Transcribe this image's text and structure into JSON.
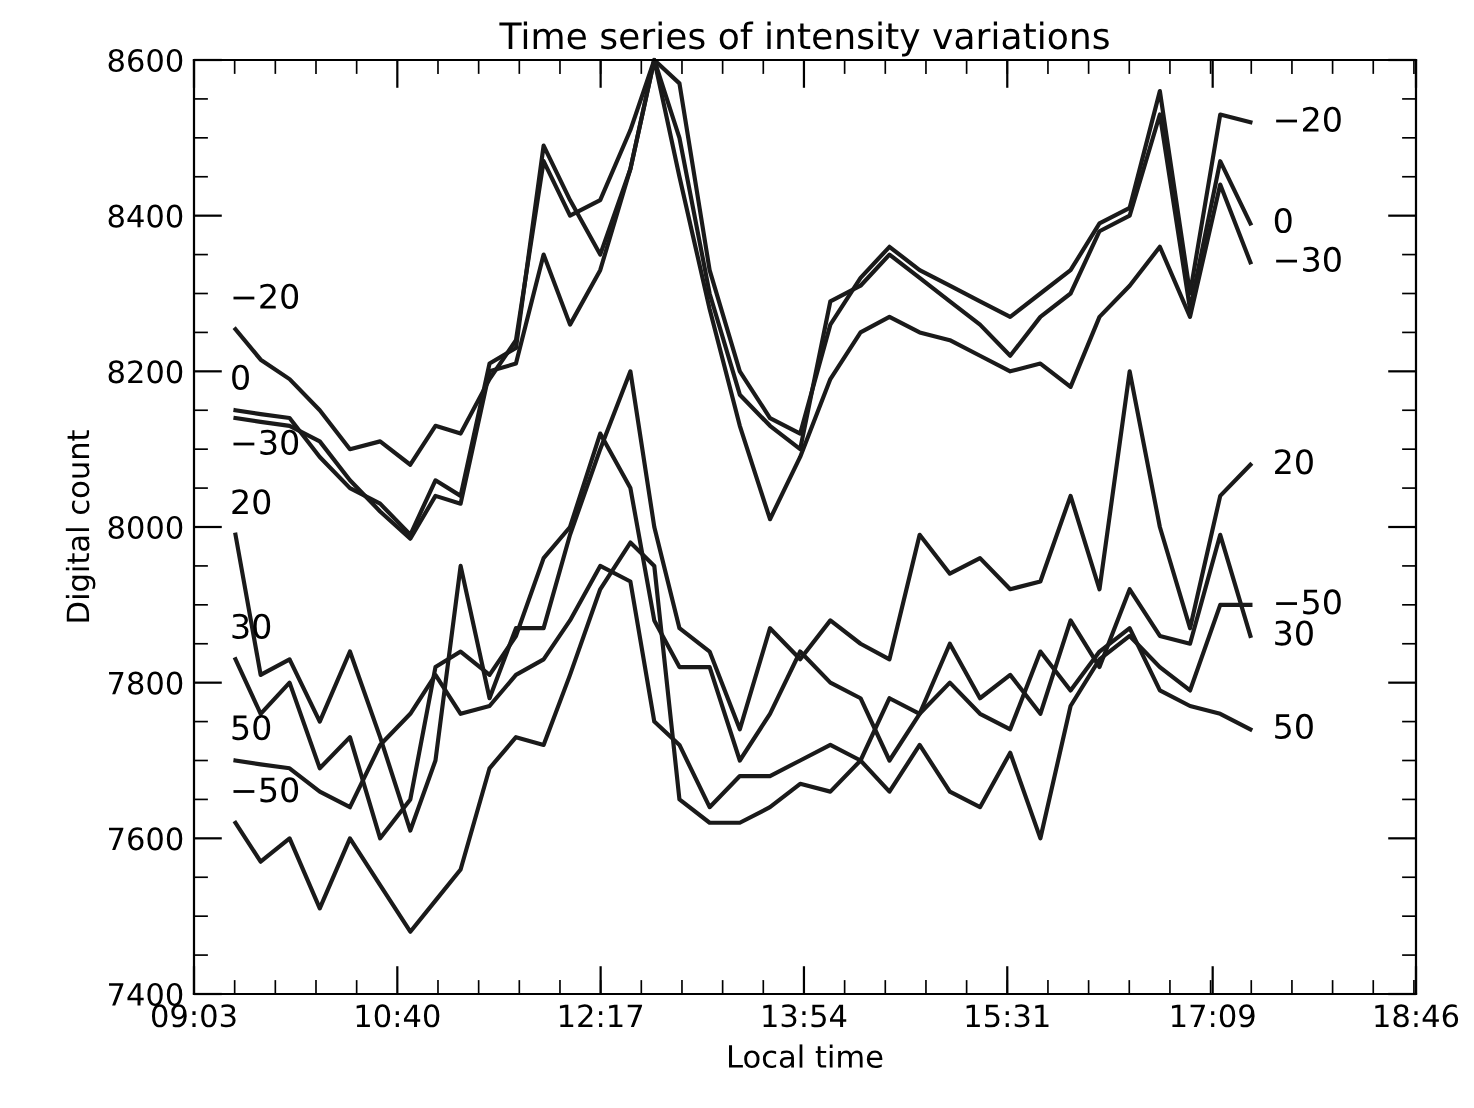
{
  "chart_data": {
    "type": "line",
    "title": "Time series of intensity variations",
    "xlabel": "Local time",
    "ylabel": "Digital count",
    "x": [
      9.38,
      9.58,
      9.81,
      10.05,
      10.29,
      10.53,
      10.77,
      10.97,
      11.17,
      11.4,
      11.61,
      11.83,
      12.04,
      12.28,
      12.52,
      12.71,
      12.91,
      13.15,
      13.39,
      13.63,
      13.87,
      14.11,
      14.35,
      14.58,
      14.82,
      15.06,
      15.3,
      15.54,
      15.78,
      16.02,
      16.25,
      16.49,
      16.73,
      16.97,
      17.21,
      17.45
    ],
    "xlim": [
      9.05,
      18.7667
    ],
    "xticks": [
      {
        "value": 9.05,
        "label": "09:03"
      },
      {
        "value": 10.6667,
        "label": "10:40"
      },
      {
        "value": 12.2833,
        "label": "12:17"
      },
      {
        "value": 13.9,
        "label": "13:54"
      },
      {
        "value": 15.5167,
        "label": "15:31"
      },
      {
        "value": 17.15,
        "label": "17:09"
      },
      {
        "value": 18.7667,
        "label": "18:46"
      }
    ],
    "ylim": [
      7400,
      8600
    ],
    "yticks": [
      7400,
      7600,
      7800,
      8000,
      8200,
      8400,
      8600
    ],
    "grid": false,
    "legend": false,
    "marker": "none",
    "line_style": "solid",
    "series": [
      {
        "name": "−20",
        "color": "#1a1a1a",
        "values": [
          8254,
          8215,
          8190,
          8150,
          8100,
          8110,
          8080,
          8130,
          8120,
          8190,
          8240,
          8470,
          8400,
          8420,
          8510,
          8600,
          8570,
          8330,
          8200,
          8140,
          8120,
          8260,
          8320,
          8360,
          8330,
          8310,
          8290,
          8270,
          8300,
          8330,
          8390,
          8410,
          8560,
          8300,
          8530,
          8520
        ]
      },
      {
        "name": "0",
        "color": "#1a1a1a",
        "values": [
          8150,
          8145,
          8140,
          8090,
          8050,
          8030,
          7990,
          8060,
          8040,
          8210,
          8230,
          8490,
          8420,
          8350,
          8460,
          8600,
          8500,
          8300,
          8170,
          8130,
          8100,
          8290,
          8310,
          8350,
          8320,
          8290,
          8260,
          8220,
          8270,
          8300,
          8380,
          8400,
          8530,
          8280,
          8470,
          8390
        ]
      },
      {
        "name": "−30",
        "color": "#1a1a1a",
        "values": [
          8140,
          8135,
          8130,
          8110,
          8060,
          8020,
          7985,
          8040,
          8030,
          8200,
          8210,
          8350,
          8260,
          8330,
          8460,
          8600,
          8450,
          8280,
          8130,
          8010,
          8090,
          8190,
          8250,
          8270,
          8250,
          8240,
          8220,
          8200,
          8210,
          8180,
          8270,
          8310,
          8360,
          8270,
          8440,
          8340
        ]
      },
      {
        "name": "20",
        "color": "#1a1a1a",
        "values": [
          7990,
          7810,
          7830,
          7750,
          7840,
          7730,
          7610,
          7700,
          7950,
          7780,
          7870,
          7870,
          7990,
          8100,
          8200,
          8000,
          7870,
          7840,
          7740,
          7870,
          7830,
          7880,
          7850,
          7830,
          7990,
          7940,
          7960,
          7920,
          7930,
          8040,
          7920,
          8200,
          8000,
          7870,
          8040,
          8080
        ]
      },
      {
        "name": "30",
        "color": "#1a1a1a",
        "values": [
          7830,
          7760,
          7800,
          7690,
          7730,
          7600,
          7650,
          7820,
          7840,
          7810,
          7860,
          7960,
          8000,
          8120,
          8050,
          7880,
          7820,
          7820,
          7700,
          7760,
          7840,
          7800,
          7780,
          7700,
          7760,
          7850,
          7780,
          7810,
          7760,
          7880,
          7820,
          7920,
          7860,
          7850,
          7990,
          7860
        ]
      },
      {
        "name": "50",
        "color": "#1a1a1a",
        "values": [
          7700,
          7695,
          7690,
          7660,
          7640,
          7720,
          7760,
          7810,
          7760,
          7770,
          7810,
          7830,
          7880,
          7950,
          7930,
          7750,
          7720,
          7640,
          7680,
          7680,
          7700,
          7720,
          7700,
          7780,
          7760,
          7800,
          7760,
          7740,
          7840,
          7790,
          7840,
          7870,
          7790,
          7770,
          7760,
          7740
        ]
      },
      {
        "name": "−50",
        "color": "#1a1a1a",
        "values": [
          7620,
          7570,
          7600,
          7510,
          7600,
          7540,
          7480,
          7520,
          7560,
          7690,
          7730,
          7720,
          7810,
          7920,
          7980,
          7950,
          7650,
          7620,
          7620,
          7640,
          7670,
          7660,
          7700,
          7660,
          7720,
          7660,
          7640,
          7710,
          7600,
          7770,
          7830,
          7860,
          7820,
          7790,
          7900,
          7900
        ]
      }
    ]
  }
}
